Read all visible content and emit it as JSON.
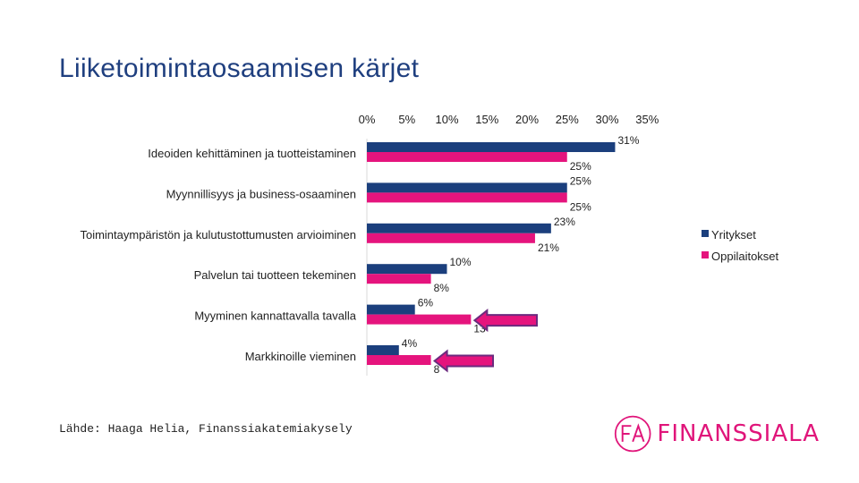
{
  "page": {
    "title": "Liiketoimintaosaamisen kärjet",
    "source": "Lähde: Haaga Helia, Finanssiakatemiakysely"
  },
  "logo": {
    "text": "FINANSSIALA",
    "mark": "FA"
  },
  "colors": {
    "series1": "#1b3f7d",
    "series2": "#e5147d",
    "arrow_fill": "#e5147d",
    "arrow_stroke": "#6b2a7e",
    "title": "#1f3f7f",
    "logo": "#e0157a"
  },
  "chart_data": {
    "type": "bar",
    "orientation": "horizontal",
    "categories": [
      "Ideoiden kehittäminen ja tuotteistaminen",
      "Myynnillisyys ja business-osaaminen",
      "Toimintaympäristön ja kulutustottumusten arvioiminen",
      "Palvelun tai tuotteen tekeminen",
      "Myyminen kannattavalla tavalla",
      "Markkinoille vieminen"
    ],
    "series": [
      {
        "name": "Yritykset",
        "values": [
          31,
          25,
          23,
          10,
          6,
          4
        ],
        "labels": [
          "31%",
          "25%",
          "23%",
          "10%",
          "6%",
          "4%"
        ]
      },
      {
        "name": "Oppilaitokset",
        "values": [
          25,
          25,
          21,
          8,
          13,
          8
        ],
        "labels": [
          "25%",
          "25%",
          "21%",
          "8%",
          "13",
          "8"
        ]
      }
    ],
    "xticks": [
      "0%",
      "5%",
      "10%",
      "15%",
      "20%",
      "25%",
      "30%",
      "35%"
    ],
    "xlim": [
      0,
      35
    ],
    "legend": "right",
    "grid": false,
    "highlight_arrows": [
      4,
      5
    ]
  }
}
